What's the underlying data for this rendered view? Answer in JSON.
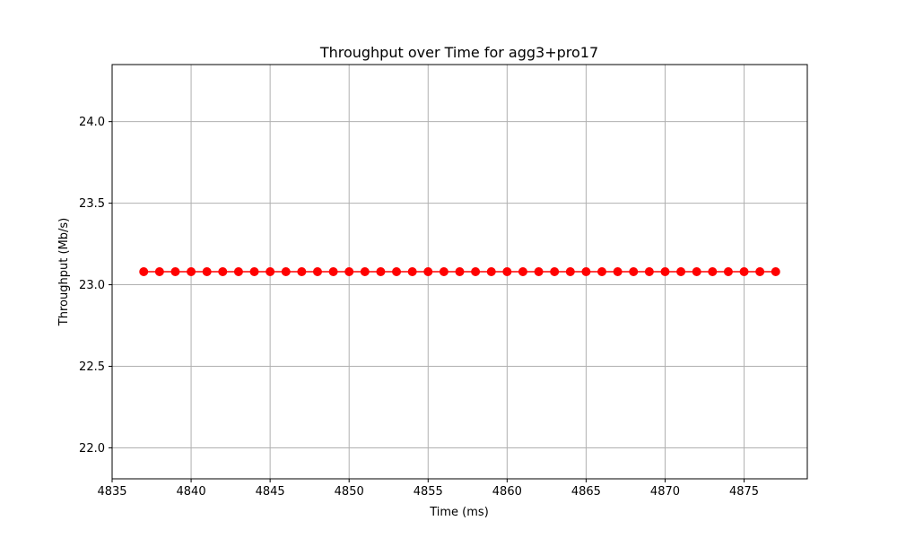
{
  "chart_data": {
    "type": "line",
    "title": "Throughput over Time for agg3+pro17",
    "xlabel": "Time (ms)",
    "ylabel": "Throughput (Mb/s)",
    "xlim": [
      4835,
      4879
    ],
    "ylim": [
      21.81,
      24.35
    ],
    "xticks": [
      4835,
      4840,
      4845,
      4850,
      4855,
      4860,
      4865,
      4870,
      4875
    ],
    "yticks": [
      22.0,
      22.5,
      23.0,
      23.5,
      24.0
    ],
    "xtick_labels": [
      "4835",
      "4840",
      "4845",
      "4850",
      "4855",
      "4860",
      "4865",
      "4870",
      "4875"
    ],
    "ytick_labels": [
      "22.0",
      "22.5",
      "23.0",
      "23.5",
      "24.0"
    ],
    "grid": true,
    "series": [
      {
        "color": "#ff0000",
        "marker": "circle",
        "x": [
          4837,
          4838,
          4839,
          4840,
          4841,
          4842,
          4843,
          4844,
          4845,
          4846,
          4847,
          4848,
          4849,
          4850,
          4851,
          4852,
          4853,
          4854,
          4855,
          4856,
          4857,
          4858,
          4859,
          4860,
          4861,
          4862,
          4863,
          4864,
          4865,
          4866,
          4867,
          4868,
          4869,
          4870,
          4871,
          4872,
          4873,
          4874,
          4875,
          4876,
          4877
        ],
        "y": [
          23.08,
          23.08,
          23.08,
          23.08,
          23.08,
          23.08,
          23.08,
          23.08,
          23.08,
          23.08,
          23.08,
          23.08,
          23.08,
          23.08,
          23.08,
          23.08,
          23.08,
          23.08,
          23.08,
          23.08,
          23.08,
          23.08,
          23.08,
          23.08,
          23.08,
          23.08,
          23.08,
          23.08,
          23.08,
          23.08,
          23.08,
          23.08,
          23.08,
          23.08,
          23.08,
          23.08,
          23.08,
          23.08,
          23.08,
          23.08,
          23.08
        ]
      }
    ]
  }
}
